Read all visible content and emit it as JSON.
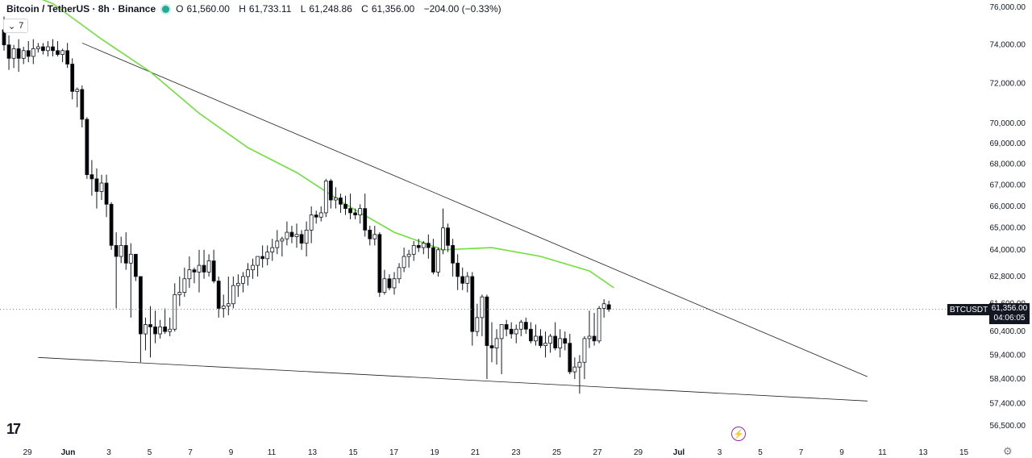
{
  "header": {
    "symbol": "Bitcoin / TetherUS · 8h · Binance",
    "open_label": "O",
    "open": "61,560.00",
    "high_label": "H",
    "high": "61,733.11",
    "low_label": "L",
    "low": "61,248.86",
    "close_label": "C",
    "close": "61,356.00",
    "change": "−204.00 (−0.33%)",
    "indicator_count": "7"
  },
  "price_tag": {
    "symbol": "BTCUSDT",
    "price": "61,356.00",
    "countdown": "04:06:05"
  },
  "colors": {
    "up_body": "#ffffff",
    "down_body": "#000000",
    "wick": "#131722",
    "ma_line": "#6fe03b",
    "trendline": "#1e1e1e",
    "accent": "#9c27b0"
  },
  "icons": {
    "logo": "tradingview-logo-icon",
    "flash": "lightning-icon",
    "settings": "gear-icon",
    "collapse": "chevron-down-icon",
    "status": "status-dot-icon"
  },
  "chart_data": {
    "type": "candlestick",
    "title": "Bitcoin / TetherUS · 8h · Binance",
    "xlabel": "",
    "ylabel": "",
    "ylim": [
      56500,
      76000
    ],
    "y_scale": "log",
    "grid": false,
    "y_ticks": [
      "76,000.00",
      "74,000.00",
      "72,000.00",
      "70,000.00",
      "69,000.00",
      "68,000.00",
      "67,000.00",
      "66,000.00",
      "65,000.00",
      "64,000.00",
      "62,800.00",
      "61,600.00",
      "60,400.00",
      "59,400.00",
      "58,400.00",
      "57,400.00",
      "56,500.00"
    ],
    "x_ticks": [
      "29",
      "Jun",
      "3",
      "5",
      "7",
      "9",
      "11",
      "13",
      "15",
      "17",
      "19",
      "21",
      "23",
      "25",
      "27",
      "29",
      "Jul",
      "3",
      "5",
      "7",
      "9",
      "11",
      "13",
      "15"
    ],
    "candles": [
      {
        "o": 74800,
        "h": 75500,
        "l": 73700,
        "c": 74000
      },
      {
        "o": 74000,
        "h": 74500,
        "l": 72700,
        "c": 73300
      },
      {
        "o": 73300,
        "h": 74000,
        "l": 72800,
        "c": 73800
      },
      {
        "o": 73800,
        "h": 74300,
        "l": 72600,
        "c": 73300
      },
      {
        "o": 73300,
        "h": 73900,
        "l": 73000,
        "c": 73700
      },
      {
        "o": 73700,
        "h": 74200,
        "l": 73100,
        "c": 73400
      },
      {
        "o": 73400,
        "h": 74300,
        "l": 73000,
        "c": 73800
      },
      {
        "o": 73800,
        "h": 74100,
        "l": 73600,
        "c": 73900
      },
      {
        "o": 73900,
        "h": 74100,
        "l": 73500,
        "c": 73700
      },
      {
        "o": 73700,
        "h": 74200,
        "l": 73400,
        "c": 73900
      },
      {
        "o": 73900,
        "h": 74300,
        "l": 73400,
        "c": 73700
      },
      {
        "o": 73700,
        "h": 74200,
        "l": 73400,
        "c": 73500
      },
      {
        "o": 73500,
        "h": 73800,
        "l": 73100,
        "c": 73700
      },
      {
        "o": 73700,
        "h": 74100,
        "l": 72800,
        "c": 73000
      },
      {
        "o": 73000,
        "h": 73300,
        "l": 71200,
        "c": 71600
      },
      {
        "o": 71600,
        "h": 71800,
        "l": 70800,
        "c": 71700
      },
      {
        "o": 71700,
        "h": 71900,
        "l": 69800,
        "c": 70200
      },
      {
        "o": 70200,
        "h": 70300,
        "l": 67300,
        "c": 67500
      },
      {
        "o": 67500,
        "h": 68200,
        "l": 66500,
        "c": 67300
      },
      {
        "o": 67300,
        "h": 67800,
        "l": 65900,
        "c": 66700
      },
      {
        "o": 66700,
        "h": 67500,
        "l": 66300,
        "c": 67100
      },
      {
        "o": 67100,
        "h": 67500,
        "l": 65500,
        "c": 66100
      },
      {
        "o": 66100,
        "h": 66200,
        "l": 64000,
        "c": 64200
      },
      {
        "o": 64200,
        "h": 64800,
        "l": 61400,
        "c": 63700
      },
      {
        "o": 63700,
        "h": 64600,
        "l": 63400,
        "c": 64200
      },
      {
        "o": 64200,
        "h": 64800,
        "l": 63100,
        "c": 63400
      },
      {
        "o": 63400,
        "h": 64300,
        "l": 61000,
        "c": 63800
      },
      {
        "o": 63800,
        "h": 63800,
        "l": 62600,
        "c": 62800
      },
      {
        "o": 62800,
        "h": 62800,
        "l": 59100,
        "c": 60300
      },
      {
        "o": 60300,
        "h": 61000,
        "l": 59600,
        "c": 60700
      },
      {
        "o": 60700,
        "h": 61500,
        "l": 59300,
        "c": 60600
      },
      {
        "o": 60600,
        "h": 61300,
        "l": 59900,
        "c": 60300
      },
      {
        "o": 60300,
        "h": 60900,
        "l": 60100,
        "c": 60600
      },
      {
        "o": 60600,
        "h": 61400,
        "l": 60300,
        "c": 60400
      },
      {
        "o": 60400,
        "h": 61000,
        "l": 60200,
        "c": 60500
      },
      {
        "o": 60500,
        "h": 62500,
        "l": 60400,
        "c": 62000
      },
      {
        "o": 62000,
        "h": 62800,
        "l": 61500,
        "c": 62100
      },
      {
        "o": 62100,
        "h": 63200,
        "l": 61900,
        "c": 62700
      },
      {
        "o": 62700,
        "h": 63700,
        "l": 62300,
        "c": 63100
      },
      {
        "o": 63100,
        "h": 63200,
        "l": 62500,
        "c": 63000
      },
      {
        "o": 63000,
        "h": 64000,
        "l": 62100,
        "c": 63300
      },
      {
        "o": 63300,
        "h": 64000,
        "l": 62700,
        "c": 63000
      },
      {
        "o": 63000,
        "h": 63800,
        "l": 62800,
        "c": 63500
      },
      {
        "o": 63500,
        "h": 64000,
        "l": 62500,
        "c": 62600
      },
      {
        "o": 62600,
        "h": 62800,
        "l": 61000,
        "c": 61400
      },
      {
        "o": 61400,
        "h": 62000,
        "l": 61000,
        "c": 61500
      },
      {
        "o": 61500,
        "h": 62800,
        "l": 61100,
        "c": 61600
      },
      {
        "o": 61600,
        "h": 62800,
        "l": 61400,
        "c": 62400
      },
      {
        "o": 62400,
        "h": 62900,
        "l": 61900,
        "c": 62500
      },
      {
        "o": 62500,
        "h": 63000,
        "l": 62100,
        "c": 62800
      },
      {
        "o": 62800,
        "h": 63400,
        "l": 62400,
        "c": 63100
      },
      {
        "o": 63100,
        "h": 63600,
        "l": 62700,
        "c": 63300
      },
      {
        "o": 63300,
        "h": 63700,
        "l": 62800,
        "c": 63700
      },
      {
        "o": 63700,
        "h": 64200,
        "l": 63200,
        "c": 63600
      },
      {
        "o": 63600,
        "h": 64200,
        "l": 63300,
        "c": 63900
      },
      {
        "o": 63900,
        "h": 64500,
        "l": 63500,
        "c": 64100
      },
      {
        "o": 64100,
        "h": 64900,
        "l": 63800,
        "c": 64400
      },
      {
        "o": 64400,
        "h": 64600,
        "l": 63700,
        "c": 64500
      },
      {
        "o": 64500,
        "h": 65300,
        "l": 64200,
        "c": 64800
      },
      {
        "o": 64800,
        "h": 65100,
        "l": 64300,
        "c": 64600
      },
      {
        "o": 64600,
        "h": 65200,
        "l": 64100,
        "c": 64700
      },
      {
        "o": 64700,
        "h": 64900,
        "l": 64000,
        "c": 64300
      },
      {
        "o": 64300,
        "h": 65300,
        "l": 63700,
        "c": 64900
      },
      {
        "o": 64900,
        "h": 66000,
        "l": 64300,
        "c": 65600
      },
      {
        "o": 65600,
        "h": 65800,
        "l": 65200,
        "c": 65500
      },
      {
        "o": 65500,
        "h": 66000,
        "l": 65300,
        "c": 65700
      },
      {
        "o": 65700,
        "h": 67300,
        "l": 65500,
        "c": 67200
      },
      {
        "o": 67200,
        "h": 67300,
        "l": 65900,
        "c": 66300
      },
      {
        "o": 66300,
        "h": 66900,
        "l": 65900,
        "c": 66400
      },
      {
        "o": 66400,
        "h": 66600,
        "l": 65700,
        "c": 66100
      },
      {
        "o": 66100,
        "h": 66500,
        "l": 65600,
        "c": 65900
      },
      {
        "o": 65900,
        "h": 66600,
        "l": 65400,
        "c": 65700
      },
      {
        "o": 65700,
        "h": 65900,
        "l": 65400,
        "c": 65600
      },
      {
        "o": 65600,
        "h": 66100,
        "l": 65200,
        "c": 65900
      },
      {
        "o": 65900,
        "h": 66600,
        "l": 64600,
        "c": 64900
      },
      {
        "o": 64900,
        "h": 65100,
        "l": 64200,
        "c": 64500
      },
      {
        "o": 64500,
        "h": 65100,
        "l": 64200,
        "c": 64700
      },
      {
        "o": 64700,
        "h": 64800,
        "l": 61900,
        "c": 62100
      },
      {
        "o": 62100,
        "h": 63100,
        "l": 62000,
        "c": 62700
      },
      {
        "o": 62700,
        "h": 62900,
        "l": 62200,
        "c": 62300
      },
      {
        "o": 62300,
        "h": 63000,
        "l": 62000,
        "c": 62700
      },
      {
        "o": 62700,
        "h": 63400,
        "l": 62500,
        "c": 63200
      },
      {
        "o": 63200,
        "h": 64100,
        "l": 63000,
        "c": 63700
      },
      {
        "o": 63700,
        "h": 64000,
        "l": 63200,
        "c": 63800
      },
      {
        "o": 63800,
        "h": 64400,
        "l": 63500,
        "c": 64200
      },
      {
        "o": 64200,
        "h": 64500,
        "l": 63900,
        "c": 64100
      },
      {
        "o": 64100,
        "h": 64400,
        "l": 63800,
        "c": 64300
      },
      {
        "o": 64300,
        "h": 64700,
        "l": 63600,
        "c": 64100
      },
      {
        "o": 64100,
        "h": 64500,
        "l": 62900,
        "c": 63000
      },
      {
        "o": 63000,
        "h": 64100,
        "l": 62800,
        "c": 64000
      },
      {
        "o": 64000,
        "h": 65900,
        "l": 63800,
        "c": 65000
      },
      {
        "o": 65000,
        "h": 65200,
        "l": 63900,
        "c": 64200
      },
      {
        "o": 64200,
        "h": 64500,
        "l": 62800,
        "c": 63400
      },
      {
        "o": 63400,
        "h": 63800,
        "l": 62200,
        "c": 62800
      },
      {
        "o": 62800,
        "h": 63200,
        "l": 62200,
        "c": 62500
      },
      {
        "o": 62500,
        "h": 63000,
        "l": 62100,
        "c": 62800
      },
      {
        "o": 62800,
        "h": 63000,
        "l": 59800,
        "c": 60400
      },
      {
        "o": 60400,
        "h": 61600,
        "l": 60200,
        "c": 61000
      },
      {
        "o": 61000,
        "h": 62000,
        "l": 60200,
        "c": 61900
      },
      {
        "o": 61900,
        "h": 62000,
        "l": 58400,
        "c": 59800
      },
      {
        "o": 59800,
        "h": 60800,
        "l": 59100,
        "c": 59700
      },
      {
        "o": 59700,
        "h": 60500,
        "l": 59000,
        "c": 60100
      },
      {
        "o": 60100,
        "h": 60700,
        "l": 58600,
        "c": 60700
      },
      {
        "o": 60700,
        "h": 60900,
        "l": 60200,
        "c": 60500
      },
      {
        "o": 60500,
        "h": 60800,
        "l": 60100,
        "c": 60300
      },
      {
        "o": 60300,
        "h": 60700,
        "l": 59900,
        "c": 60500
      },
      {
        "o": 60500,
        "h": 60900,
        "l": 60200,
        "c": 60800
      },
      {
        "o": 60800,
        "h": 61000,
        "l": 60300,
        "c": 60500
      },
      {
        "o": 60500,
        "h": 60800,
        "l": 59900,
        "c": 60000
      },
      {
        "o": 60000,
        "h": 60700,
        "l": 59800,
        "c": 60200
      },
      {
        "o": 60200,
        "h": 60500,
        "l": 59700,
        "c": 59800
      },
      {
        "o": 59800,
        "h": 60400,
        "l": 59300,
        "c": 59900
      },
      {
        "o": 59900,
        "h": 60300,
        "l": 59500,
        "c": 60200
      },
      {
        "o": 60200,
        "h": 60800,
        "l": 59600,
        "c": 59700
      },
      {
        "o": 59700,
        "h": 60500,
        "l": 59300,
        "c": 60100
      },
      {
        "o": 60100,
        "h": 60400,
        "l": 59600,
        "c": 59900
      },
      {
        "o": 59900,
        "h": 60300,
        "l": 58600,
        "c": 58700
      },
      {
        "o": 58700,
        "h": 59300,
        "l": 58400,
        "c": 58900
      },
      {
        "o": 58900,
        "h": 59400,
        "l": 57800,
        "c": 59100
      },
      {
        "o": 59100,
        "h": 60200,
        "l": 58400,
        "c": 60100
      },
      {
        "o": 60100,
        "h": 61300,
        "l": 59700,
        "c": 60200
      },
      {
        "o": 60200,
        "h": 61200,
        "l": 59800,
        "c": 60000
      },
      {
        "o": 60000,
        "h": 61500,
        "l": 59900,
        "c": 61400
      },
      {
        "o": 61400,
        "h": 61800,
        "l": 61000,
        "c": 61600
      },
      {
        "o": 61560,
        "h": 61733.11,
        "l": 61248.86,
        "c": 61356
      }
    ],
    "ma": [
      {
        "i": 0,
        "v": 77200
      },
      {
        "i": 10,
        "v": 76200
      },
      {
        "i": 20,
        "v": 74300
      },
      {
        "i": 30,
        "v": 72600
      },
      {
        "i": 40,
        "v": 70500
      },
      {
        "i": 50,
        "v": 68800
      },
      {
        "i": 60,
        "v": 67600
      },
      {
        "i": 70,
        "v": 66100
      },
      {
        "i": 80,
        "v": 64800
      },
      {
        "i": 90,
        "v": 64000
      },
      {
        "i": 100,
        "v": 64100
      },
      {
        "i": 110,
        "v": 63700
      },
      {
        "i": 120,
        "v": 63050
      },
      {
        "i": 125,
        "v": 62300
      }
    ],
    "trendlines": [
      {
        "from": {
          "i": 16,
          "v": 74100
        },
        "to": {
          "i": 177,
          "v": 58500
        }
      },
      {
        "from": {
          "i": 7,
          "v": 59300
        },
        "to": {
          "i": 177,
          "v": 57500
        }
      }
    ],
    "current_price": 61356
  }
}
